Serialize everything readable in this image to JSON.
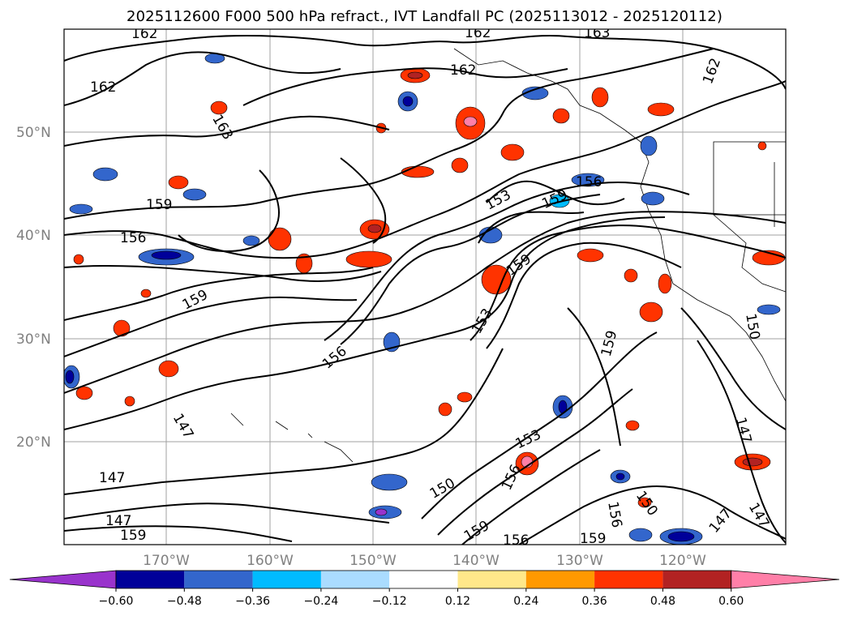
{
  "title": "2025112600 F000 500 hPa refract., IVT Landfall PC (2025113012 - 2025120112)",
  "lat_labels": [
    "50°N",
    "40°N",
    "30°N",
    "20°N"
  ],
  "lon_labels": [
    "170°W",
    "160°W",
    "150°W",
    "140°W",
    "130°W",
    "120°W"
  ],
  "colorbar": {
    "labels": [
      "−0.60",
      "−0.48",
      "−0.36",
      "−0.24",
      "−0.12",
      "0.12",
      "0.24",
      "0.36",
      "0.48",
      "0.60"
    ],
    "colors": [
      "#9933cc",
      "#000099",
      "#3366cc",
      "#00bbff",
      "#aadcff",
      "#ffffff",
      "#ffe88a",
      "#ff9900",
      "#ff3300",
      "#b22222",
      "#ff7fa8"
    ]
  },
  "contour_labels": [
    {
      "text": "162"
    },
    {
      "text": "162"
    },
    {
      "text": "162"
    },
    {
      "text": "162"
    },
    {
      "text": "163"
    },
    {
      "text": "163"
    },
    {
      "text": "162"
    },
    {
      "text": "159"
    },
    {
      "text": "156"
    },
    {
      "text": "159"
    },
    {
      "text": "156"
    },
    {
      "text": "153"
    },
    {
      "text": "159"
    },
    {
      "text": "156"
    },
    {
      "text": "159"
    },
    {
      "text": "153"
    },
    {
      "text": "159"
    },
    {
      "text": "150"
    },
    {
      "text": "147"
    },
    {
      "text": "147"
    },
    {
      "text": "147"
    },
    {
      "text": "159"
    },
    {
      "text": "147"
    },
    {
      "text": "150"
    },
    {
      "text": "156"
    },
    {
      "text": "159"
    },
    {
      "text": "153"
    },
    {
      "text": "156"
    },
    {
      "text": "150"
    },
    {
      "text": "147"
    },
    {
      "text": "147"
    },
    {
      "text": "159"
    },
    {
      "text": "156"
    }
  ]
}
